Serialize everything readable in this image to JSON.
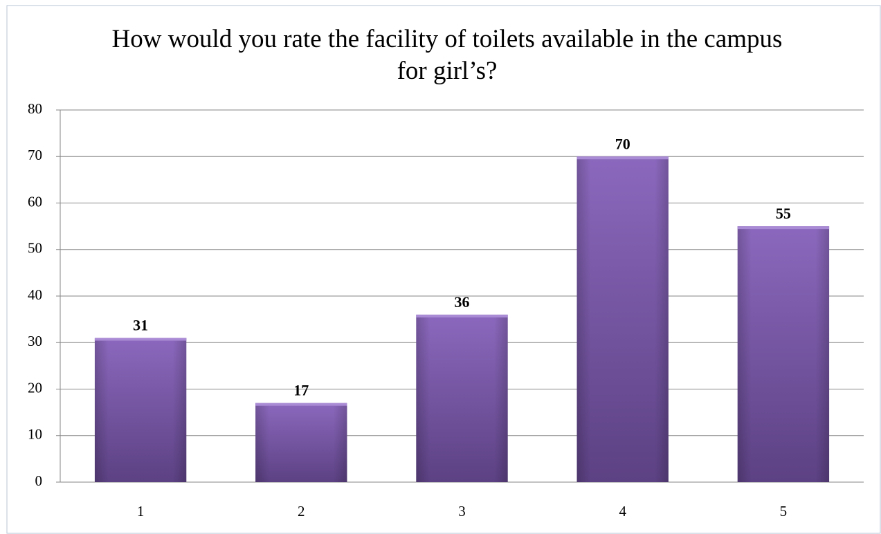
{
  "chart_data": {
    "type": "bar",
    "title": "How would you rate the facility of toilets available in the campus for girl’s?",
    "categories": [
      "1",
      "2",
      "3",
      "4",
      "5"
    ],
    "values": [
      31,
      17,
      36,
      70,
      55
    ],
    "color": "#7b58aa",
    "ylim": [
      0,
      80
    ],
    "yticks": [
      0,
      10,
      20,
      30,
      40,
      50,
      60,
      70,
      80
    ],
    "grid": true
  }
}
